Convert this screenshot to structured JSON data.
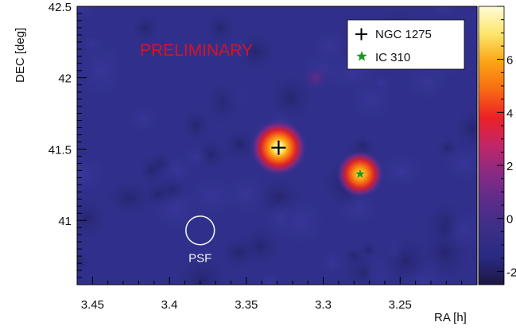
{
  "chart_data": {
    "type": "heatmap",
    "title": "",
    "xlabel": "RA [h]",
    "ylabel": "DEC [deg]",
    "xlim": [
      3.46,
      3.2
    ],
    "ylim": [
      40.55,
      42.5
    ],
    "x_ticks": [
      3.45,
      3.4,
      3.35,
      3.3,
      3.25
    ],
    "x_tick_labels": [
      "3.45",
      "3.4",
      "3.35",
      "3.3",
      "3.25"
    ],
    "y_ticks": [
      41,
      41.5,
      42,
      42.5
    ],
    "y_tick_labels": [
      "41",
      "41.5",
      "42",
      "42.5"
    ],
    "colorbar": {
      "range": [
        -2.5,
        8
      ],
      "ticks": [
        -2,
        0,
        2,
        4,
        6
      ],
      "tick_labels": [
        "-2",
        "0",
        "2",
        "4",
        "6"
      ],
      "stops": [
        "#1d1742",
        "#2a2a82",
        "#3b2f86",
        "#5b2c8a",
        "#8a2a84",
        "#c12668",
        "#ec2028",
        "#f86a12",
        "#fba414",
        "#fde56a",
        "#fefcd8"
      ]
    },
    "background_color": "#30308c",
    "blobs": [
      {
        "x": 3.329,
        "y": 41.51,
        "peak": 8,
        "sigma_deg": 0.065
      },
      {
        "x": 3.276,
        "y": 41.325,
        "peak": 6,
        "sigma_deg": 0.055
      },
      {
        "x": 3.305,
        "y": 42.0,
        "peak": 1.3,
        "sigma_deg": 0.04
      }
    ],
    "markers": [
      {
        "name": "NGC 1275",
        "x": 3.329,
        "y": 41.51,
        "symbol": "cross",
        "color": "#000000"
      },
      {
        "name": "IC 310",
        "x": 3.276,
        "y": 41.325,
        "symbol": "star",
        "color": "#1a9a1a"
      }
    ],
    "legend": {
      "placement": "top-right",
      "entries": [
        "NGC 1275",
        "IC 310"
      ]
    },
    "annotations": {
      "preliminary": "PRELIMINARY",
      "psf_label": "PSF"
    },
    "psf": {
      "x": 3.38,
      "y": 40.93,
      "radius_deg": 0.1
    }
  }
}
